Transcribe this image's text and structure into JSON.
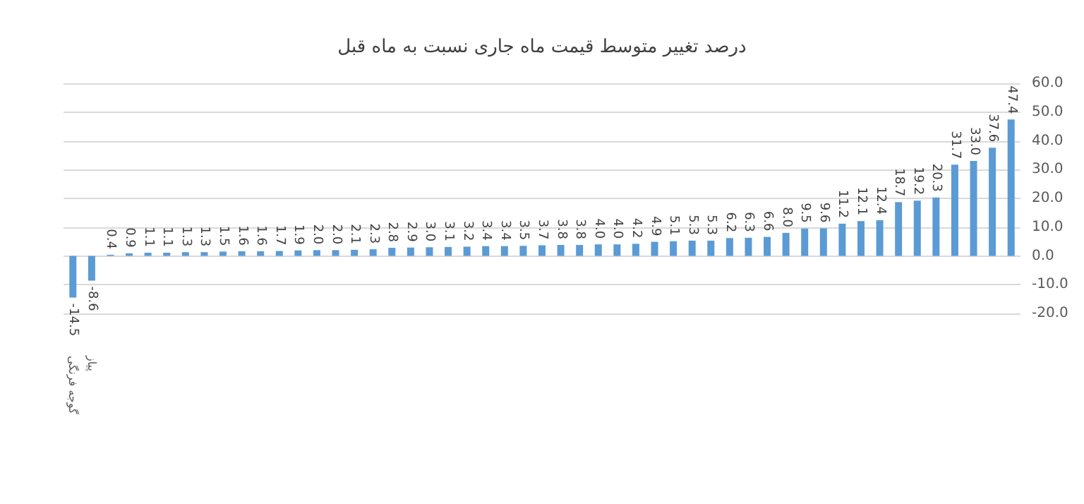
{
  "chart_data": {
    "type": "bar",
    "title": "درصد تغییر متوسط قیمت ماه جاری نسبت به ماه قبل",
    "categories": [
      "گوجه فرنگی",
      "پیاز",
      null,
      null,
      null,
      null,
      null,
      null,
      null,
      null,
      null,
      null,
      null,
      null,
      null,
      null,
      null,
      null,
      null,
      null,
      null,
      null,
      null,
      null,
      null,
      null,
      null,
      null,
      null,
      null,
      null,
      null,
      null,
      null,
      null,
      null,
      null,
      null,
      null,
      null,
      null,
      null,
      null,
      null,
      null,
      null,
      null,
      null,
      null,
      null,
      null
    ],
    "values": [
      -14.5,
      -8.6,
      0.4,
      0.9,
      1.1,
      1.1,
      1.3,
      1.3,
      1.5,
      1.6,
      1.6,
      1.7,
      1.9,
      2.0,
      2.0,
      2.1,
      2.3,
      2.8,
      2.9,
      3.0,
      3.1,
      3.2,
      3.4,
      3.4,
      3.5,
      3.7,
      3.8,
      3.8,
      4.0,
      4.0,
      4.2,
      4.9,
      5.1,
      5.3,
      5.3,
      6.2,
      6.3,
      6.6,
      8.0,
      9.5,
      9.6,
      11.2,
      12.1,
      12.4,
      18.7,
      19.2,
      20.3,
      31.7,
      33.0,
      37.6,
      47.4
    ],
    "value_labels": [
      "-14.5",
      "-8.6",
      "0.4",
      "0.9",
      "1.1",
      "1.1",
      "1.3",
      "1.3",
      "1.5",
      "1.6",
      "1.6",
      "1.7",
      "1.9",
      "2.0",
      "2.0",
      "2.1",
      "2.3",
      "2.8",
      "2.9",
      "3.0",
      "3.1",
      "3.2",
      "3.4",
      "3.4",
      "3.5",
      "3.7",
      "3.8",
      "3.8",
      "4.0",
      "4.0",
      "4.2",
      "4.9",
      "5.1",
      "5.3",
      "5.3",
      "6.2",
      "6.3",
      "6.6",
      "8.0",
      "9.5",
      "9.6",
      "11.2",
      "12.1",
      "12.4",
      "18.7",
      "19.2",
      "20.3",
      "31.7",
      "33.0",
      "37.6",
      "47.4"
    ],
    "color": "#5b9bd5",
    "ylim": [
      -20,
      60
    ],
    "yticks": [
      {
        "value": -20,
        "label": "-20.0"
      },
      {
        "value": -10,
        "label": "-10.0"
      },
      {
        "value": 0,
        "label": "0.0"
      },
      {
        "value": 10,
        "label": "10.0"
      },
      {
        "value": 20,
        "label": "20.0"
      },
      {
        "value": 30,
        "label": "30.0"
      },
      {
        "value": 40,
        "label": "40.0"
      },
      {
        "value": 50,
        "label": "50.0"
      },
      {
        "value": 60,
        "label": "60.0"
      }
    ],
    "grid": "y"
  }
}
